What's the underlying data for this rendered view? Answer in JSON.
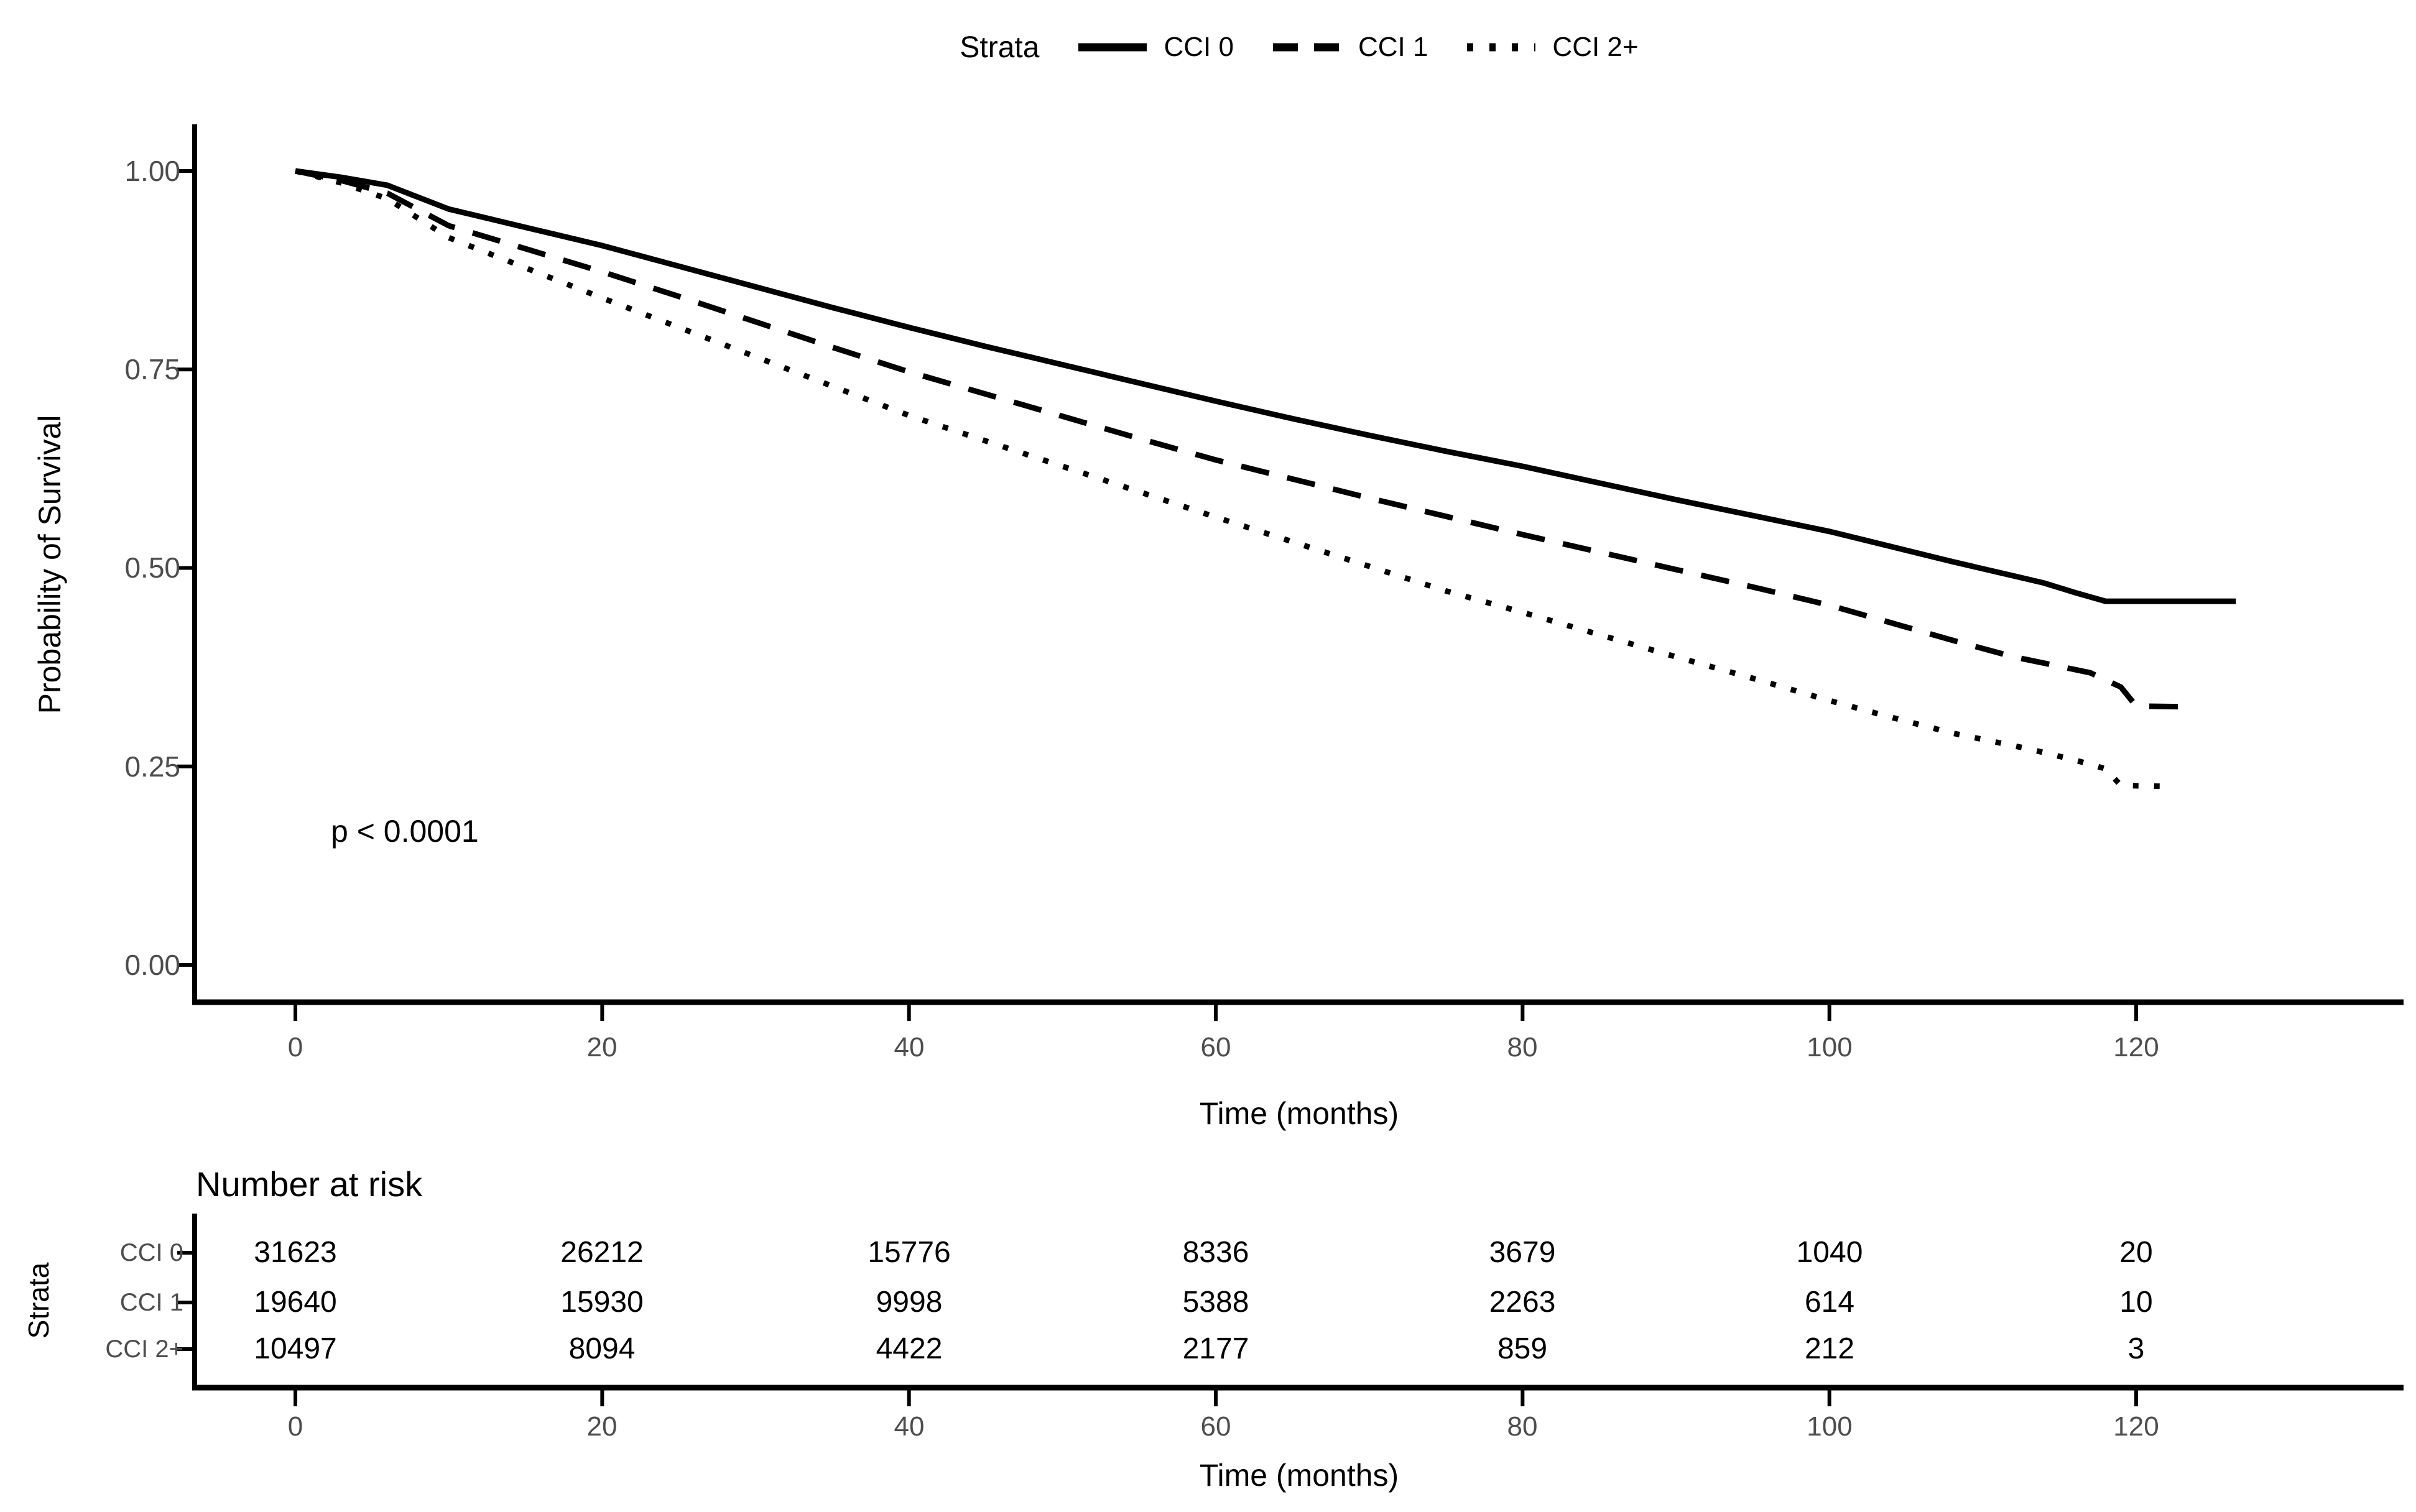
{
  "figure": {
    "background": "#ffffff",
    "curve_color": "#000000",
    "tick_label_color": "#4d4d4d"
  },
  "legend": {
    "title": "Strata",
    "items": [
      {
        "label": "CCI 0",
        "linetype": "solid"
      },
      {
        "label": "CCI 1",
        "linetype": "dashed"
      },
      {
        "label": "CCI 2+",
        "linetype": "dotted"
      }
    ]
  },
  "plot": {
    "ylabel": "Probability of Survival",
    "xlabel": "Time (months)",
    "annotation": "p < 0.0001",
    "y_ticks": [
      "1.00",
      "0.75",
      "0.50",
      "0.25",
      "0.00"
    ],
    "x_ticks": [
      "0",
      "20",
      "40",
      "60",
      "80",
      "100",
      "120"
    ]
  },
  "risk_table": {
    "title": "Number at risk",
    "ylabel": "Strata",
    "xlabel": "Time (months)",
    "x_ticks": [
      "0",
      "20",
      "40",
      "60",
      "80",
      "100",
      "120"
    ],
    "rows": [
      {
        "label": "CCI 0",
        "values": [
          "31623",
          "26212",
          "15776",
          "8336",
          "3679",
          "1040",
          "20"
        ]
      },
      {
        "label": "CCI 1",
        "values": [
          "19640",
          "15930",
          "9998",
          "5388",
          "2263",
          "614",
          "10"
        ]
      },
      {
        "label": "CCI 2+",
        "values": [
          "10497",
          "8094",
          "4422",
          "2177",
          "859",
          "212",
          "3"
        ]
      }
    ]
  },
  "chart_data": {
    "type": "line",
    "subtype": "kaplan-meier-survival",
    "title": "",
    "xlabel": "Time (months)",
    "ylabel": "Probability of Survival",
    "xlim": [
      0,
      137
    ],
    "ylim": [
      0.0,
      1.0
    ],
    "x_tick_values": [
      0,
      20,
      40,
      60,
      80,
      100,
      120
    ],
    "y_tick_values": [
      0.0,
      0.25,
      0.5,
      0.75,
      1.0
    ],
    "grid": false,
    "legend_position": "top",
    "annotation": {
      "text": "p < 0.0001",
      "x_months": 12,
      "y_survival": 0.2
    },
    "series": [
      {
        "name": "CCI 0",
        "linetype": "solid",
        "points": [
          [
            0,
            1.0
          ],
          [
            3,
            0.992
          ],
          [
            6,
            0.982
          ],
          [
            10,
            0.952
          ],
          [
            15,
            0.929
          ],
          [
            20,
            0.906
          ],
          [
            25,
            0.88
          ],
          [
            30,
            0.854
          ],
          [
            35,
            0.828
          ],
          [
            40,
            0.803
          ],
          [
            45,
            0.779
          ],
          [
            50,
            0.756
          ],
          [
            55,
            0.733
          ],
          [
            60,
            0.71
          ],
          [
            65,
            0.688
          ],
          [
            70,
            0.667
          ],
          [
            75,
            0.647
          ],
          [
            80,
            0.628
          ],
          [
            85,
            0.607
          ],
          [
            90,
            0.586
          ],
          [
            95,
            0.566
          ],
          [
            100,
            0.546
          ],
          [
            104,
            0.527
          ],
          [
            108,
            0.508
          ],
          [
            112,
            0.49
          ],
          [
            114,
            0.481
          ],
          [
            116,
            0.469
          ],
          [
            118,
            0.458
          ],
          [
            126.5,
            0.458
          ]
        ]
      },
      {
        "name": "CCI 1",
        "linetype": "dashed",
        "points": [
          [
            0,
            1.0
          ],
          [
            3,
            0.988
          ],
          [
            6,
            0.972
          ],
          [
            10,
            0.931
          ],
          [
            15,
            0.902
          ],
          [
            20,
            0.873
          ],
          [
            25,
            0.842
          ],
          [
            30,
            0.81
          ],
          [
            35,
            0.778
          ],
          [
            40,
            0.747
          ],
          [
            45,
            0.719
          ],
          [
            50,
            0.691
          ],
          [
            55,
            0.663
          ],
          [
            60,
            0.636
          ],
          [
            65,
            0.612
          ],
          [
            70,
            0.588
          ],
          [
            75,
            0.565
          ],
          [
            80,
            0.542
          ],
          [
            85,
            0.52
          ],
          [
            90,
            0.498
          ],
          [
            95,
            0.476
          ],
          [
            100,
            0.453
          ],
          [
            104,
            0.431
          ],
          [
            108,
            0.409
          ],
          [
            112,
            0.388
          ],
          [
            115,
            0.376
          ],
          [
            117,
            0.368
          ],
          [
            119,
            0.35
          ],
          [
            120,
            0.326
          ],
          [
            123.6,
            0.325
          ]
        ]
      },
      {
        "name": "CCI 2+",
        "linetype": "dotted",
        "points": [
          [
            0,
            1.0
          ],
          [
            3,
            0.985
          ],
          [
            6,
            0.965
          ],
          [
            10,
            0.916
          ],
          [
            15,
            0.878
          ],
          [
            20,
            0.84
          ],
          [
            25,
            0.803
          ],
          [
            30,
            0.766
          ],
          [
            35,
            0.729
          ],
          [
            40,
            0.692
          ],
          [
            45,
            0.66
          ],
          [
            50,
            0.628
          ],
          [
            55,
            0.596
          ],
          [
            60,
            0.564
          ],
          [
            65,
            0.533
          ],
          [
            70,
            0.502
          ],
          [
            75,
            0.471
          ],
          [
            80,
            0.444
          ],
          [
            85,
            0.416
          ],
          [
            90,
            0.388
          ],
          [
            95,
            0.361
          ],
          [
            100,
            0.333
          ],
          [
            104,
            0.312
          ],
          [
            108,
            0.292
          ],
          [
            111,
            0.28
          ],
          [
            113,
            0.272
          ],
          [
            116,
            0.258
          ],
          [
            118,
            0.247
          ],
          [
            119,
            0.226
          ],
          [
            121.6,
            0.225
          ]
        ]
      }
    ],
    "risk_table": {
      "title": "Number at risk",
      "time_points": [
        0,
        20,
        40,
        60,
        80,
        100,
        120
      ],
      "strata": [
        {
          "name": "CCI 0",
          "n_at_risk": [
            31623,
            26212,
            15776,
            8336,
            3679,
            1040,
            20
          ]
        },
        {
          "name": "CCI 1",
          "n_at_risk": [
            19640,
            15930,
            9998,
            5388,
            2263,
            614,
            10
          ]
        },
        {
          "name": "CCI 2+",
          "n_at_risk": [
            10497,
            8094,
            4422,
            2177,
            859,
            212,
            3
          ]
        }
      ]
    }
  }
}
